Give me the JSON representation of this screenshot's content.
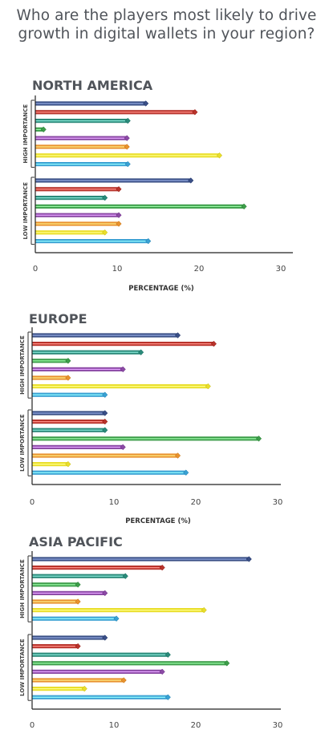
{
  "title": "Who are the players most likely to drive growth in digital wallets in your region?",
  "colors": [
    "#3a4f86",
    "#b8342c",
    "#2b8a7a",
    "#3e9d4b",
    "#8b4aa5",
    "#e8922f",
    "#e9de2c",
    "#3aa1d3"
  ],
  "chart_data": [
    {
      "type": "bar",
      "title": "NORTH AMERICA",
      "xlabel": "PERCENTAGE (%)",
      "xlim": [
        0,
        30
      ],
      "xticks": [
        "0",
        "10",
        "20",
        "30"
      ],
      "groups": [
        {
          "name": "HIGH IMPORTANCE",
          "values": [
            13.5,
            19.5,
            11.3,
            1.0,
            11.2,
            11.2,
            22.5,
            11.3
          ]
        },
        {
          "name": "LOW IMPORTANCE",
          "values": [
            19.0,
            10.2,
            8.5,
            25.5,
            10.2,
            10.2,
            8.5,
            13.8
          ]
        }
      ]
    },
    {
      "type": "bar",
      "title": "EUROPE",
      "xlabel": "PERCENTAGE (%)",
      "xlim": [
        0,
        30
      ],
      "xticks": [
        "0",
        "10",
        "20",
        "30"
      ],
      "groups": [
        {
          "name": "HIGH IMPORTANCE",
          "values": [
            17.8,
            22.2,
            13.3,
            4.4,
            11.1,
            4.4,
            21.5,
            8.9
          ]
        },
        {
          "name": "LOW IMPORTANCE",
          "values": [
            8.9,
            8.9,
            8.9,
            27.7,
            11.1,
            17.8,
            4.4,
            18.8
          ]
        }
      ]
    },
    {
      "type": "bar",
      "title": "ASIA PACIFIC",
      "xlabel": "",
      "xlim": [
        0,
        30
      ],
      "xticks": [
        "0",
        "10",
        "20",
        "30"
      ],
      "groups": [
        {
          "name": "HIGH IMPORTANCE",
          "values": [
            26.5,
            15.9,
            11.4,
            5.6,
            8.9,
            5.6,
            21.0,
            10.3
          ]
        },
        {
          "name": "LOW IMPORTANCE",
          "values": [
            8.9,
            5.6,
            16.6,
            23.8,
            15.9,
            11.2,
            6.4,
            16.6
          ]
        }
      ]
    }
  ]
}
